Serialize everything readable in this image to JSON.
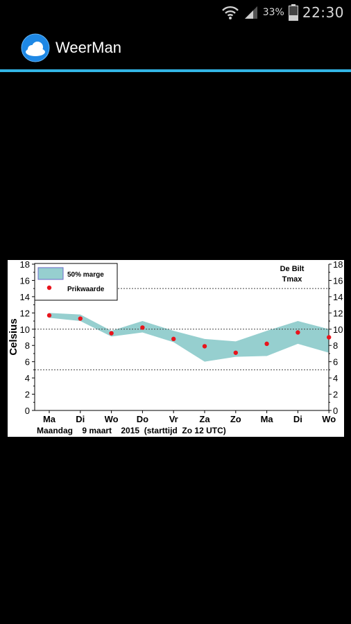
{
  "status_bar": {
    "battery_percent": "33%",
    "time": "22:30"
  },
  "app": {
    "title": "WeerMan"
  },
  "chart_data": {
    "type": "area",
    "title": "De Bilt",
    "subtitle": "Tmax",
    "ylabel": "Celsius",
    "xlabel": "Maandag    9 maart    2015  (starttijd  Zo 12 UTC)",
    "ylim": [
      0,
      18
    ],
    "yticks": [
      0,
      2,
      4,
      6,
      8,
      10,
      12,
      14,
      16,
      18
    ],
    "dotted_gridlines": [
      5,
      10,
      15
    ],
    "categories": [
      "Ma",
      "Di",
      "Wo",
      "Do",
      "Vr",
      "Za",
      "Zo",
      "Ma",
      "Di",
      "Wo"
    ],
    "legend_placement": "top-left",
    "series": [
      {
        "name": "50% marge",
        "color": "#96cfcf",
        "upper": [
          12.0,
          11.8,
          9.8,
          11.0,
          9.8,
          8.8,
          8.5,
          9.8,
          11.0,
          10.0
        ],
        "lower": [
          11.4,
          11.0,
          9.1,
          9.6,
          8.4,
          6.0,
          6.6,
          6.7,
          8.2,
          7.1
        ]
      },
      {
        "name": "Prikwaarde",
        "color": "#e8141c",
        "values": [
          11.7,
          11.3,
          9.5,
          10.2,
          8.8,
          7.9,
          7.1,
          8.2,
          9.6,
          9.0
        ]
      }
    ]
  }
}
